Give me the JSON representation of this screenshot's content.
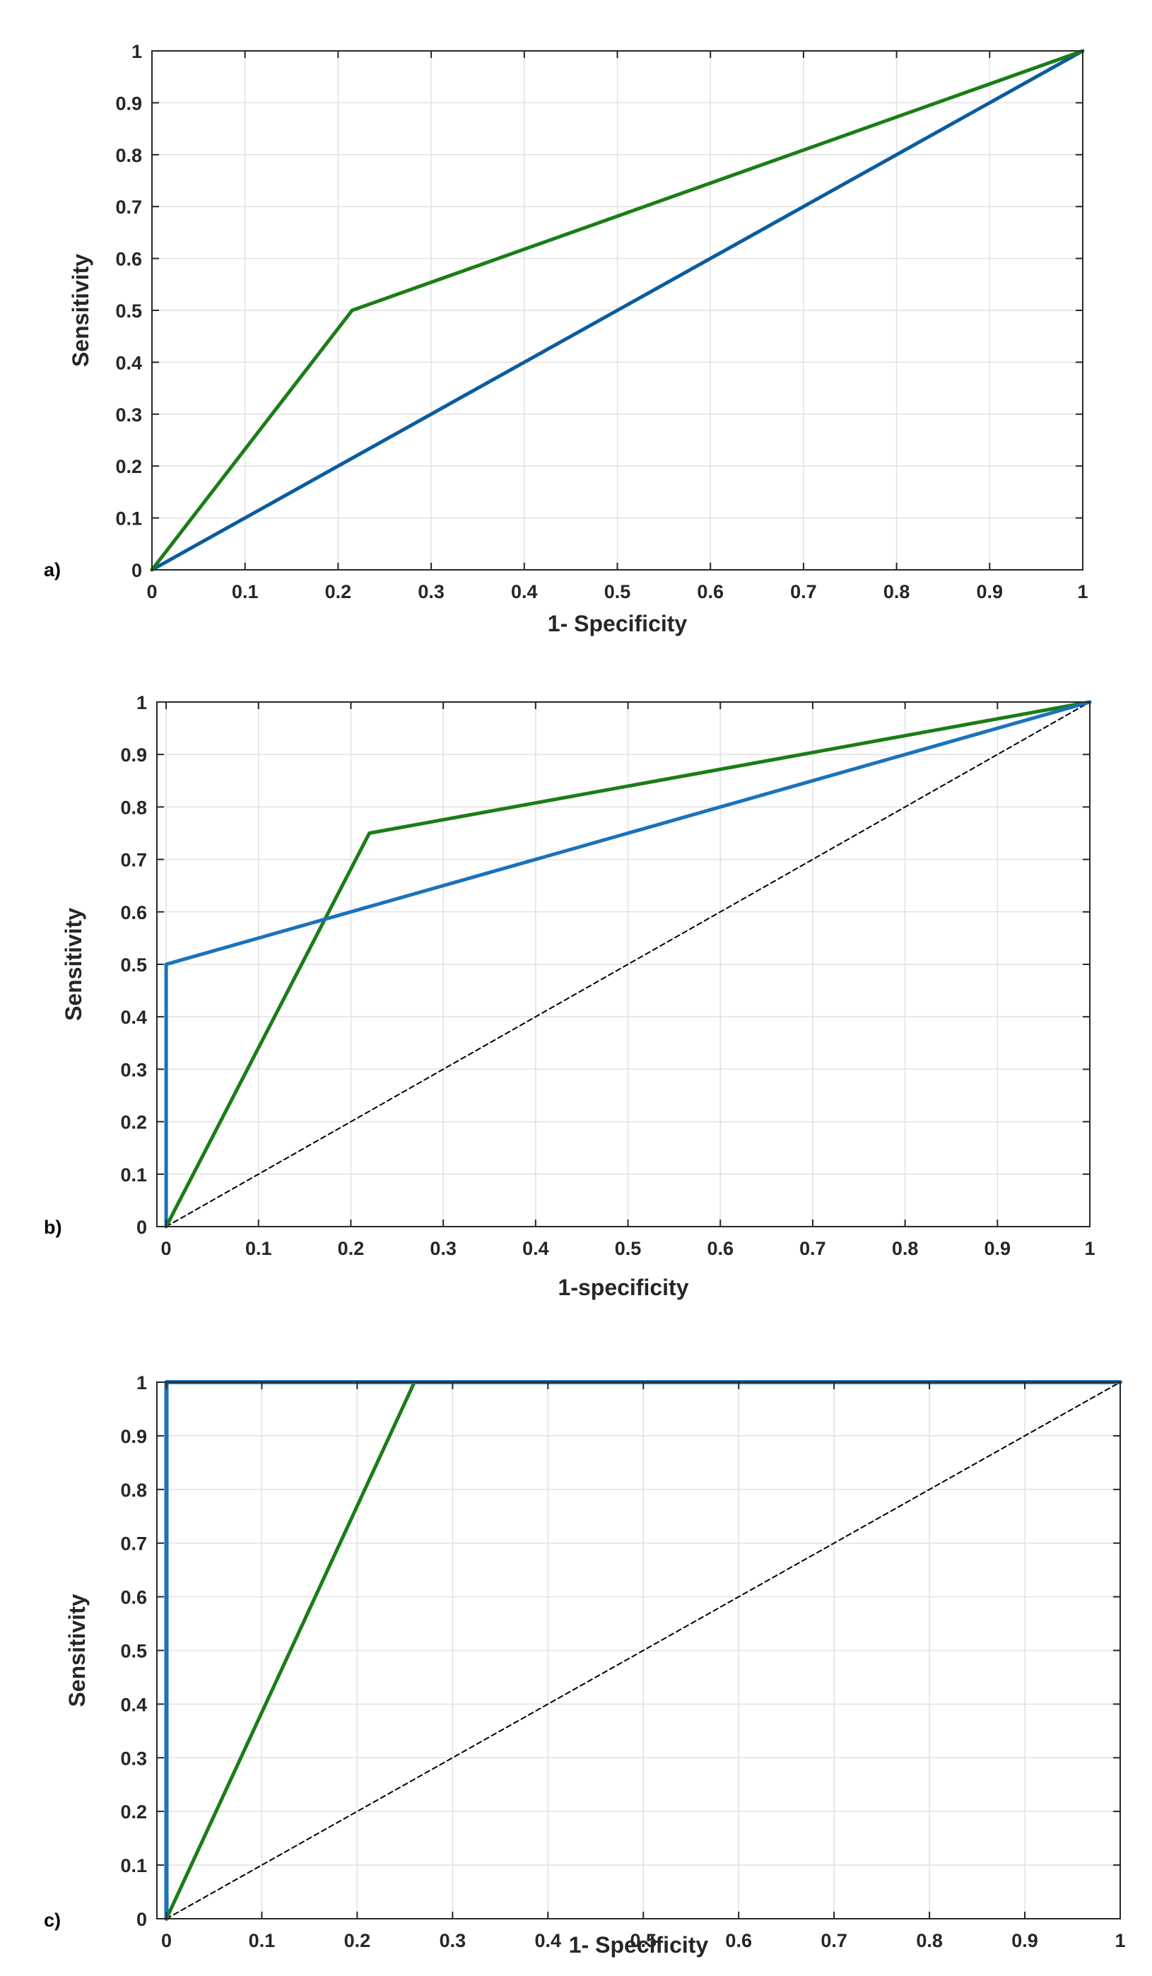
{
  "figure": {
    "panels": [
      {
        "id": "a",
        "label": "a)",
        "xlabel": "1- Specificity",
        "ylabel": "Sensitivity"
      },
      {
        "id": "b",
        "label": "b)",
        "xlabel": "1-specificity",
        "ylabel": "Sensitivity"
      },
      {
        "id": "c",
        "label": "c)",
        "xlabel": "1-  Specificity",
        "ylabel": "Sensitivity"
      }
    ]
  },
  "chart_data": [
    {
      "type": "line",
      "panel_label": "a)",
      "xlabel": "1- Specificity",
      "ylabel": "Sensitivity",
      "xlim": [
        0,
        1
      ],
      "ylim": [
        0,
        1
      ],
      "grid": true,
      "xticks": [
        "0",
        "0.1",
        "0.2",
        "0.3",
        "0.4",
        "0.5",
        "0.6",
        "0.7",
        "0.8",
        "0.9",
        "1"
      ],
      "yticks": [
        "0",
        "0.1",
        "0.2",
        "0.3",
        "0.4",
        "0.5",
        "0.6",
        "0.7",
        "0.8",
        "0.9",
        "1"
      ],
      "series": [
        {
          "color": "#0a5c9e",
          "width": 5,
          "x": [
            0,
            1
          ],
          "y": [
            0,
            1
          ]
        },
        {
          "color": "#1a7d16",
          "width": 5,
          "x": [
            0,
            0.215,
            1
          ],
          "y": [
            0,
            0.5,
            1
          ]
        }
      ]
    },
    {
      "type": "line",
      "panel_label": "b)",
      "xlabel": "1-specificity",
      "ylabel": "Sensitivity",
      "xlim": [
        -0.01,
        1
      ],
      "ylim": [
        0,
        1
      ],
      "grid": true,
      "xticks": [
        "0",
        "0.1",
        "0.2",
        "0.3",
        "0.4",
        "0.5",
        "0.6",
        "0.7",
        "0.8",
        "0.9",
        "1"
      ],
      "yticks": [
        "0",
        "0.1",
        "0.2",
        "0.3",
        "0.4",
        "0.5",
        "0.6",
        "0.7",
        "0.8",
        "0.9",
        "1"
      ],
      "series": [
        {
          "color": "#000000",
          "width": 2,
          "dashed": true,
          "x": [
            0,
            1
          ],
          "y": [
            0,
            1
          ]
        },
        {
          "color": "#1a7d16",
          "width": 5,
          "x": [
            0,
            0.22,
            1
          ],
          "y": [
            0,
            0.75,
            1
          ]
        },
        {
          "color": "#1a72bb",
          "width": 5,
          "x": [
            0,
            0,
            1
          ],
          "y": [
            0,
            0.5,
            1
          ]
        }
      ]
    },
    {
      "type": "line",
      "panel_label": "c)",
      "xlabel": "1-  Specificity",
      "ylabel": "Sensitivity",
      "xlim": [
        -0.01,
        1
      ],
      "ylim": [
        0,
        1
      ],
      "grid": true,
      "xticks": [
        "0",
        "0.1",
        "0.2",
        "0.3",
        "0.4",
        "0.5",
        "0.6",
        "0.7",
        "0.8",
        "0.9",
        "1"
      ],
      "yticks": [
        "0",
        "0.1",
        "0.2",
        "0.3",
        "0.4",
        "0.5",
        "0.6",
        "0.7",
        "0.8",
        "0.9",
        "1"
      ],
      "series": [
        {
          "color": "#000000",
          "width": 2,
          "dashed": true,
          "x": [
            0,
            1
          ],
          "y": [
            0,
            1
          ]
        },
        {
          "color": "#1a7d16",
          "width": 5,
          "x": [
            0,
            0.26,
            1
          ],
          "y": [
            0,
            1,
            1
          ]
        },
        {
          "color": "#1a72bb",
          "width": 6,
          "x": [
            0,
            0,
            1
          ],
          "y": [
            0,
            1,
            1
          ]
        }
      ]
    }
  ]
}
